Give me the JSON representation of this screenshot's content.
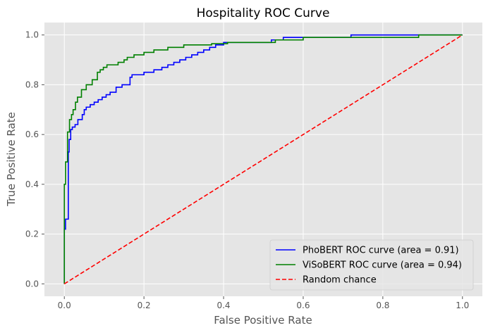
{
  "chart_data": {
    "type": "line",
    "title": "Hospitality ROC Curve",
    "xlabel": "False Positive Rate",
    "ylabel": "True Positive Rate",
    "xlim": [
      -0.05,
      1.05
    ],
    "ylim": [
      -0.05,
      1.05
    ],
    "xticks": [
      0.0,
      0.2,
      0.4,
      0.6,
      0.8,
      1.0
    ],
    "yticks": [
      0.0,
      0.2,
      0.4,
      0.6,
      0.8,
      1.0
    ],
    "xtick_labels": [
      "0.0",
      "0.2",
      "0.4",
      "0.6",
      "0.8",
      "1.0"
    ],
    "ytick_labels": [
      "0.0",
      "0.2",
      "0.4",
      "0.6",
      "0.8",
      "1.0"
    ],
    "grid": true,
    "legend_position": "lower-right",
    "background": "#e5e5e5",
    "series": [
      {
        "name": "PhoBERT ROC curve (area = 0.91)",
        "color": "#0000ff",
        "style": "solid",
        "step": true,
        "x": [
          0.0,
          0.0,
          0.003,
          0.003,
          0.01,
          0.01,
          0.012,
          0.012,
          0.016,
          0.016,
          0.02,
          0.02,
          0.027,
          0.027,
          0.034,
          0.034,
          0.045,
          0.045,
          0.05,
          0.05,
          0.055,
          0.055,
          0.065,
          0.065,
          0.075,
          0.075,
          0.085,
          0.085,
          0.095,
          0.095,
          0.105,
          0.105,
          0.115,
          0.115,
          0.13,
          0.13,
          0.145,
          0.145,
          0.165,
          0.165,
          0.17,
          0.17,
          0.2,
          0.2,
          0.225,
          0.225,
          0.245,
          0.245,
          0.26,
          0.26,
          0.275,
          0.275,
          0.29,
          0.29,
          0.305,
          0.305,
          0.32,
          0.32,
          0.335,
          0.335,
          0.35,
          0.35,
          0.365,
          0.365,
          0.38,
          0.38,
          0.4,
          0.4,
          0.42,
          0.42,
          0.45,
          0.45,
          0.49,
          0.49,
          0.52,
          0.52,
          0.55,
          0.55,
          0.72,
          0.72,
          0.75,
          0.75,
          1.0
        ],
        "y": [
          0.0,
          0.22,
          0.22,
          0.26,
          0.26,
          0.53,
          0.53,
          0.58,
          0.58,
          0.62,
          0.62,
          0.63,
          0.63,
          0.64,
          0.64,
          0.66,
          0.66,
          0.68,
          0.68,
          0.7,
          0.7,
          0.71,
          0.71,
          0.72,
          0.72,
          0.73,
          0.73,
          0.74,
          0.74,
          0.75,
          0.75,
          0.76,
          0.76,
          0.77,
          0.77,
          0.79,
          0.79,
          0.8,
          0.8,
          0.83,
          0.83,
          0.84,
          0.84,
          0.85,
          0.85,
          0.86,
          0.86,
          0.87,
          0.87,
          0.88,
          0.88,
          0.89,
          0.89,
          0.9,
          0.9,
          0.91,
          0.91,
          0.92,
          0.92,
          0.93,
          0.93,
          0.94,
          0.94,
          0.95,
          0.95,
          0.96,
          0.96,
          0.97,
          0.97,
          0.97,
          0.97,
          0.97,
          0.97,
          0.97,
          0.97,
          0.98,
          0.98,
          0.99,
          0.99,
          1.0,
          1.0,
          1.0,
          1.0
        ]
      },
      {
        "name": "ViSoBERT ROC curve (area = 0.94)",
        "color": "#008000",
        "style": "solid",
        "step": true,
        "x": [
          0.0,
          0.0,
          0.003,
          0.003,
          0.008,
          0.008,
          0.013,
          0.013,
          0.018,
          0.018,
          0.022,
          0.022,
          0.028,
          0.028,
          0.033,
          0.033,
          0.043,
          0.043,
          0.055,
          0.055,
          0.07,
          0.07,
          0.083,
          0.083,
          0.09,
          0.09,
          0.098,
          0.098,
          0.107,
          0.107,
          0.12,
          0.12,
          0.135,
          0.135,
          0.15,
          0.15,
          0.158,
          0.158,
          0.165,
          0.165,
          0.175,
          0.175,
          0.185,
          0.185,
          0.2,
          0.2,
          0.225,
          0.225,
          0.26,
          0.26,
          0.3,
          0.3,
          0.33,
          0.33,
          0.37,
          0.37,
          0.41,
          0.41,
          0.53,
          0.53,
          0.6,
          0.6,
          0.72,
          0.72,
          0.89,
          0.89,
          1.0
        ],
        "y": [
          0.0,
          0.4,
          0.4,
          0.49,
          0.49,
          0.61,
          0.61,
          0.66,
          0.66,
          0.68,
          0.68,
          0.7,
          0.7,
          0.73,
          0.73,
          0.75,
          0.75,
          0.78,
          0.78,
          0.8,
          0.8,
          0.82,
          0.82,
          0.85,
          0.85,
          0.86,
          0.86,
          0.87,
          0.87,
          0.88,
          0.88,
          0.88,
          0.88,
          0.89,
          0.89,
          0.9,
          0.9,
          0.91,
          0.91,
          0.91,
          0.91,
          0.92,
          0.92,
          0.92,
          0.92,
          0.93,
          0.93,
          0.94,
          0.94,
          0.95,
          0.95,
          0.96,
          0.96,
          0.96,
          0.96,
          0.965,
          0.965,
          0.97,
          0.97,
          0.98,
          0.98,
          0.99,
          0.99,
          0.99,
          0.99,
          1.0,
          1.0
        ]
      },
      {
        "name": "Random chance",
        "color": "#ff0000",
        "style": "dashed",
        "step": false,
        "x": [
          0.0,
          1.0
        ],
        "y": [
          0.0,
          1.0
        ]
      }
    ]
  }
}
